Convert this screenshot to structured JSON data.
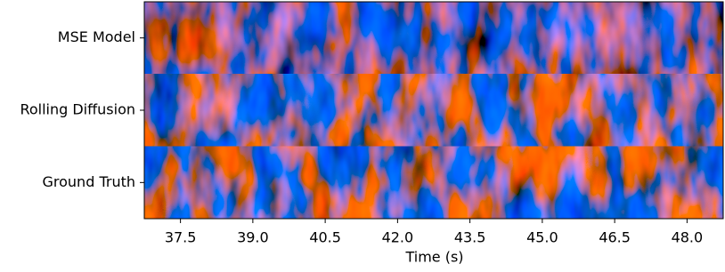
{
  "chart_data": {
    "type": "image",
    "categories": [
      "MSE Model",
      "Rolling Diffusion",
      "Ground Truth"
    ],
    "xlabel": "Time (s)",
    "xlim": [
      36.75,
      48.75
    ],
    "xticks": [
      37.5,
      {
        "value": 39,
        "label": "39.0"
      },
      40.5,
      {
        "value": 42,
        "label": "42.0"
      },
      43.5,
      {
        "value": 45,
        "label": "45.0"
      },
      46.5,
      {
        "value": 48,
        "label": "48.0"
      }
    ]
  }
}
